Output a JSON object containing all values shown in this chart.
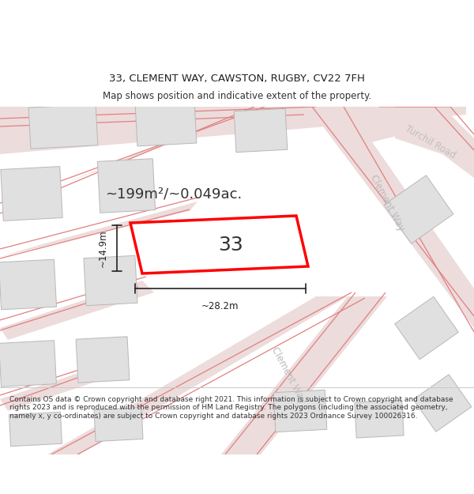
{
  "title": "33, CLEMENT WAY, CAWSTON, RUGBY, CV22 7FH",
  "subtitle": "Map shows position and indicative extent of the property.",
  "footer": "Contains OS data © Crown copyright and database right 2021. This information is subject to Crown copyright and database rights 2023 and is reproduced with the permission of HM Land Registry. The polygons (including the associated geometry, namely x, y co-ordinates) are subject to Crown copyright and database rights 2023 Ordnance Survey 100026316.",
  "area_text": "~199m²/~0.049ac.",
  "dim_width": "~28.2m",
  "dim_height": "~14.9m",
  "plot_number": "33",
  "road_fill": "#eddcdc",
  "road_line": "#e08080",
  "building_fill": "#e0e0e0",
  "building_edge": "#b8b8b8",
  "plot_fill": "#ffffff",
  "plot_edge": "#ff0000",
  "map_bg": "#f5f0f0",
  "street_label_color": "#bbbbbb",
  "turchil_label_color": "#c0c0c0",
  "header_bg": "#ffffff",
  "footer_bg": "#ffffff",
  "title_fontsize": 9.5,
  "subtitle_fontsize": 8.5,
  "footer_fontsize": 6.5,
  "area_fontsize": 13,
  "dim_fontsize": 8.5,
  "number_fontsize": 18,
  "street_fontsize": 8.5
}
